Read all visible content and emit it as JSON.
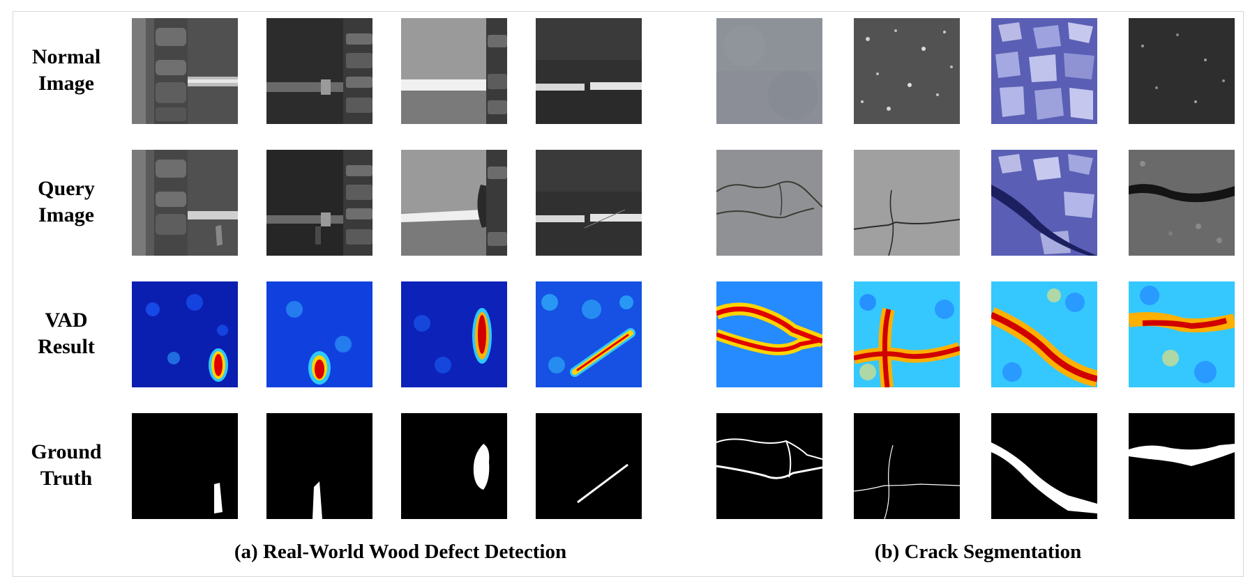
{
  "rows": [
    {
      "line1": "Normal",
      "line2": "Image"
    },
    {
      "line1": "Query",
      "line2": "Image"
    },
    {
      "line1": "VAD",
      "line2": "Result"
    },
    {
      "line1": "Ground",
      "line2": "Truth"
    }
  ],
  "captions": {
    "left": "(a) Real-World Wood Defect Detection",
    "right": "(b) Crack Segmentation"
  }
}
